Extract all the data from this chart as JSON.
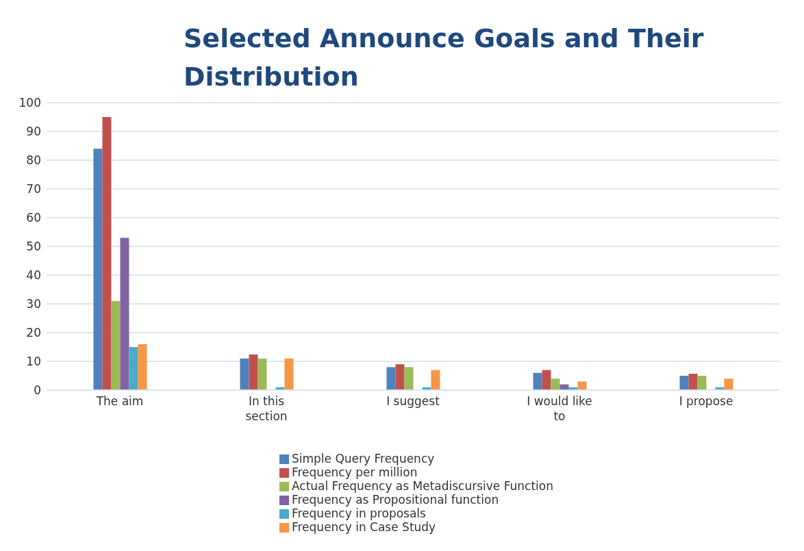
{
  "chart_data": {
    "type": "bar",
    "title": "Selected Announce Goals and Their Distribution",
    "categories": [
      "The aim",
      "In this section",
      "I suggest",
      "I would like to",
      "I propose"
    ],
    "series": [
      {
        "name": "Simple Query Frequency",
        "color": "#4f81bd",
        "values": [
          84,
          11,
          8,
          6,
          5
        ]
      },
      {
        "name": "Frequency per million",
        "color": "#c0504d",
        "values": [
          95,
          12.4,
          9,
          7,
          5.7
        ]
      },
      {
        "name": "Actual Frequency as Metadiscursive Function",
        "color": "#9bbb59",
        "values": [
          31,
          11,
          8,
          4,
          5
        ]
      },
      {
        "name": "Frequency as Propositional function",
        "color": "#8064a2",
        "values": [
          53,
          0,
          0,
          2,
          0
        ]
      },
      {
        "name": "Frequency in proposals",
        "color": "#4bacc6",
        "values": [
          15,
          1,
          1,
          1,
          1
        ]
      },
      {
        "name": "Frequency in Case Study",
        "color": "#f79646",
        "values": [
          16,
          11,
          7,
          3,
          4
        ]
      }
    ],
    "ylim": [
      0,
      100
    ],
    "yticks": [
      0,
      10,
      20,
      30,
      40,
      50,
      60,
      70,
      80,
      90,
      100
    ],
    "grid": "y",
    "legend": "bottom"
  }
}
